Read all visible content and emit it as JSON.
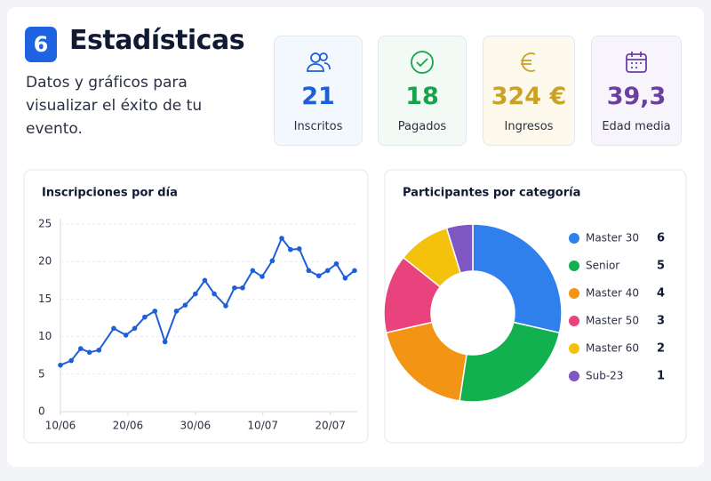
{
  "header": {
    "step": "6",
    "title": "Estadísticas",
    "subtitle": "Datos y gráficos para visualizar el éxito de tu evento."
  },
  "stats": [
    {
      "value": "21",
      "label": "Inscritos",
      "color": "#1f5fd6",
      "background": "#f3f7fe"
    },
    {
      "value": "18",
      "label": "Pagados",
      "color": "#17a34a",
      "background": "#f1faf4"
    },
    {
      "value": "324 €",
      "label": "Ingresos",
      "color": "#c9a227",
      "background": "#fdf9ec"
    },
    {
      "value": "39,3",
      "label": "Edad media",
      "color": "#6b3fa0",
      "background": "#f7f4fc"
    }
  ],
  "chart_data": [
    {
      "type": "line",
      "title": "Inscripciones por día",
      "color": "#1f5fd6",
      "x": [
        0,
        1.6,
        3,
        4.3,
        5.7,
        7.9,
        9.7,
        11,
        12.5,
        14,
        15.5,
        17.2,
        18.5,
        20,
        21.4,
        22.8,
        24.5,
        25.8,
        27,
        28.5,
        29.9,
        31.4,
        32.8,
        34.1,
        35.4,
        36.8,
        38.3,
        39.6,
        40.9,
        42.2,
        43.6
      ],
      "values": [
        6.2,
        6.8,
        8.4,
        7.9,
        8.2,
        11.1,
        10.2,
        11.1,
        12.6,
        13.4,
        9.3,
        13.4,
        14.2,
        15.7,
        17.5,
        15.7,
        14.1,
        16.5,
        16.5,
        18.8,
        18.0,
        20.1,
        23.1,
        21.6,
        21.7,
        18.8,
        18.1,
        18.8,
        19.7,
        17.8,
        18.8
      ],
      "xlim": [
        0,
        44
      ],
      "xticks": [
        {
          "value": 0,
          "label": "10/06"
        },
        {
          "value": 10,
          "label": "20/06"
        },
        {
          "value": 20,
          "label": "30/06"
        },
        {
          "value": 30,
          "label": "10/07"
        },
        {
          "value": 40,
          "label": "20/07"
        }
      ],
      "ylim": [
        0,
        25
      ],
      "yticks": [
        0,
        5,
        10,
        15,
        20,
        25
      ],
      "grid": true
    },
    {
      "type": "pie",
      "title": "Participantes por categoría",
      "donut": true,
      "categories": [
        "Master 30",
        "Senior",
        "Master 40",
        "Master 50",
        "Master 60",
        "Sub-23"
      ],
      "values": [
        6,
        5,
        4,
        3,
        2,
        1
      ],
      "colors": [
        "#2f80ed",
        "#12b04f",
        "#f39415",
        "#e8437c",
        "#f4c20d",
        "#7e57c2"
      ],
      "legend": "right"
    }
  ]
}
